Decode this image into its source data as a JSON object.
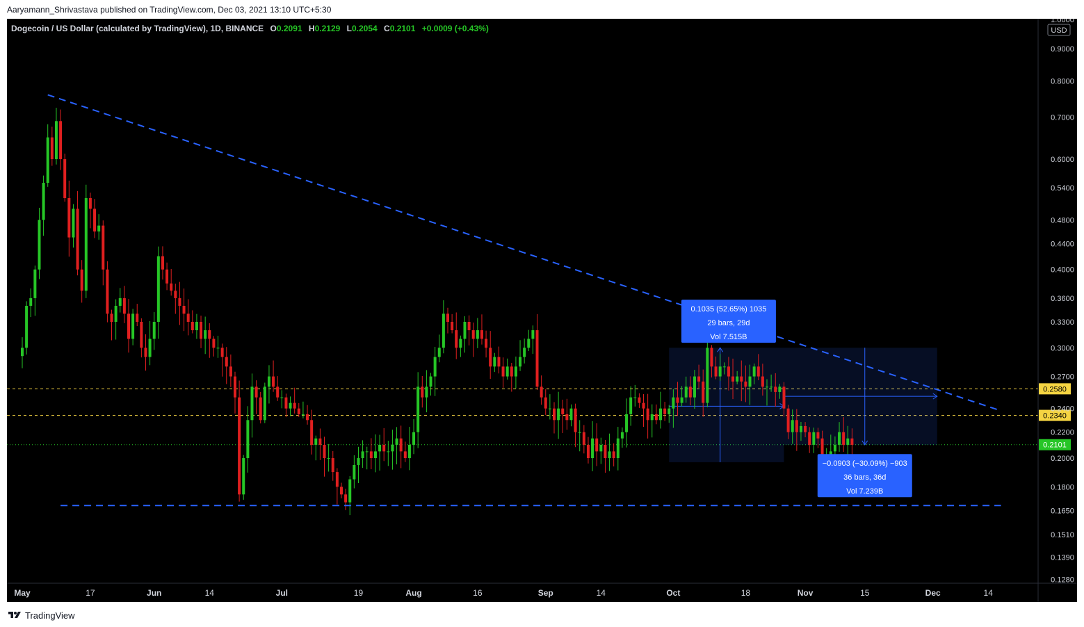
{
  "publisher_line": "Aaryamann_Shrivastava published on TradingView.com, Dec 03, 2021 13:10 UTC+5:30",
  "footer_brand": "TradingView",
  "icons": {
    "footer_logo": "tradingview-logo-icon"
  },
  "colors": {
    "background": "#000000",
    "bull": "#26c626",
    "bear": "#e01f1f",
    "trend": "#2962ff",
    "level": "#f5d442",
    "text": "#d1d4dc",
    "label_bg": "#2962ff"
  },
  "chart_data": {
    "type": "candlestick",
    "symbol_title": "Dogecoin / US Dollar (calculated by TradingView), 1D, BINANCE",
    "ohlc_legend": [
      {
        "key": "O",
        "value": "0.2091"
      },
      {
        "key": "H",
        "value": "0.2129"
      },
      {
        "key": "L",
        "value": "0.2054"
      },
      {
        "key": "C",
        "value": "0.2101"
      },
      {
        "key": "",
        "value": "+0.0009 (+0.43%)"
      }
    ],
    "y_scale": "log",
    "y_currency": "USD",
    "y_top_label": "1.0000",
    "y_ticks": [
      0.9,
      0.8,
      0.7,
      0.6,
      0.54,
      0.48,
      0.44,
      0.4,
      0.36,
      0.33,
      0.3,
      0.27,
      0.24,
      0.22,
      0.2,
      0.18,
      0.165,
      0.151,
      0.139,
      0.128
    ],
    "y_tick_labels": [
      "0.9000",
      "0.8000",
      "0.7000",
      "0.6000",
      "0.5400",
      "0.4800",
      "0.4400",
      "0.4000",
      "0.3600",
      "0.3300",
      "0.3000",
      "0.2700",
      "0.2400",
      "0.2200",
      "0.2000",
      "0.1800",
      "0.1650",
      "0.1510",
      "0.1390",
      "0.1280"
    ],
    "x_ticks": [
      {
        "label": "May",
        "date": "2021-05-01"
      },
      {
        "label": "17",
        "date": "2021-05-17"
      },
      {
        "label": "Jun",
        "date": "2021-06-01"
      },
      {
        "label": "14",
        "date": "2021-06-14"
      },
      {
        "label": "Jul",
        "date": "2021-07-01"
      },
      {
        "label": "19",
        "date": "2021-07-19"
      },
      {
        "label": "Aug",
        "date": "2021-08-01"
      },
      {
        "label": "16",
        "date": "2021-08-16"
      },
      {
        "label": "Sep",
        "date": "2021-09-01"
      },
      {
        "label": "14",
        "date": "2021-09-14"
      },
      {
        "label": "Oct",
        "date": "2021-10-01"
      },
      {
        "label": "18",
        "date": "2021-10-18"
      },
      {
        "label": "Nov",
        "date": "2021-11-01"
      },
      {
        "label": "15",
        "date": "2021-11-15"
      },
      {
        "label": "Dec",
        "date": "2021-12-01"
      },
      {
        "label": "14",
        "date": "2021-12-14"
      }
    ],
    "x_range": [
      "2021-05-01",
      "2021-12-17"
    ],
    "y_range": [
      0.12,
      1.0
    ],
    "price_levels": [
      {
        "value": 0.258,
        "label": "0.2580",
        "style": "dashed-yellow"
      },
      {
        "value": 0.234,
        "label": "0.2340",
        "style": "dashed-yellow"
      },
      {
        "value": 0.2101,
        "label": "0.2101",
        "style": "current-price"
      }
    ],
    "trendlines": [
      {
        "name": "descending resistance",
        "start": [
          "2021-05-07",
          0.76
        ],
        "end": [
          "2021-12-17",
          0.238
        ]
      },
      {
        "name": "support",
        "start": [
          "2021-05-10",
          0.168
        ],
        "end": [
          "2021-12-17",
          0.168
        ]
      }
    ],
    "measurements": [
      {
        "box": {
          "x0": "2021-09-30",
          "x1": "2021-10-27",
          "y0": 0.197,
          "y1": 0.3
        },
        "arrow_x": "2021-10-12",
        "arrow_dir": "up",
        "arrow_from": 0.197,
        "arrow_to": 0.3,
        "h_arrow_y": 0.242,
        "anchor": [
          "2021-10-14",
          0.358
        ],
        "lines": [
          "0.1035 (52.65%) 1035",
          "29 bars, 29d",
          "Vol 7.515B"
        ]
      },
      {
        "box": {
          "x0": "2021-10-27",
          "x1": "2021-12-02",
          "y0": 0.21,
          "y1": 0.3
        },
        "arrow_x": "2021-11-15",
        "arrow_dir": "down",
        "arrow_from": 0.3,
        "arrow_to": 0.21,
        "h_arrow_y": 0.251,
        "anchor": [
          "2021-11-15",
          0.203
        ],
        "lines": [
          "−0.0903 (−30.09%) −903",
          "36 bars, 36d",
          "Vol 7.239B"
        ]
      }
    ],
    "series_close": [
      0.3,
      0.35,
      0.36,
      0.4,
      0.48,
      0.55,
      0.65,
      0.6,
      0.69,
      0.6,
      0.52,
      0.45,
      0.5,
      0.4,
      0.37,
      0.52,
      0.5,
      0.46,
      0.47,
      0.4,
      0.34,
      0.33,
      0.35,
      0.36,
      0.34,
      0.31,
      0.34,
      0.33,
      0.3,
      0.29,
      0.31,
      0.33,
      0.42,
      0.4,
      0.38,
      0.37,
      0.36,
      0.35,
      0.34,
      0.33,
      0.32,
      0.33,
      0.31,
      0.32,
      0.31,
      0.3,
      0.3,
      0.29,
      0.28,
      0.27,
      0.25,
      0.175,
      0.2,
      0.23,
      0.26,
      0.25,
      0.23,
      0.26,
      0.27,
      0.26,
      0.25,
      0.25,
      0.24,
      0.245,
      0.24,
      0.235,
      0.235,
      0.23,
      0.21,
      0.215,
      0.21,
      0.2,
      0.2,
      0.19,
      0.18,
      0.175,
      0.17,
      0.185,
      0.195,
      0.2,
      0.205,
      0.205,
      0.2,
      0.205,
      0.21,
      0.205,
      0.205,
      0.21,
      0.215,
      0.205,
      0.2,
      0.21,
      0.22,
      0.26,
      0.25,
      0.26,
      0.27,
      0.29,
      0.3,
      0.34,
      0.33,
      0.32,
      0.3,
      0.31,
      0.33,
      0.32,
      0.31,
      0.32,
      0.31,
      0.3,
      0.28,
      0.29,
      0.28,
      0.27,
      0.28,
      0.27,
      0.28,
      0.29,
      0.3,
      0.31,
      0.32,
      0.26,
      0.25,
      0.24,
      0.24,
      0.23,
      0.24,
      0.235,
      0.23,
      0.24,
      0.22,
      0.22,
      0.21,
      0.2,
      0.215,
      0.205,
      0.21,
      0.2,
      0.205,
      0.2,
      0.215,
      0.22,
      0.235,
      0.25,
      0.25,
      0.245,
      0.24,
      0.23,
      0.235,
      0.23,
      0.24,
      0.235,
      0.24,
      0.25,
      0.245,
      0.25,
      0.26,
      0.25,
      0.27,
      0.265,
      0.245,
      0.3,
      0.28,
      0.27,
      0.28,
      0.28,
      0.27,
      0.265,
      0.27,
      0.265,
      0.26,
      0.27,
      0.28,
      0.27,
      0.26,
      0.26,
      0.26,
      0.255,
      0.26,
      0.24,
      0.22,
      0.23,
      0.22,
      0.225,
      0.22,
      0.21,
      0.22,
      0.215,
      0.19,
      0.2,
      0.205,
      0.21,
      0.22,
      0.21,
      0.215,
      0.21
    ]
  }
}
